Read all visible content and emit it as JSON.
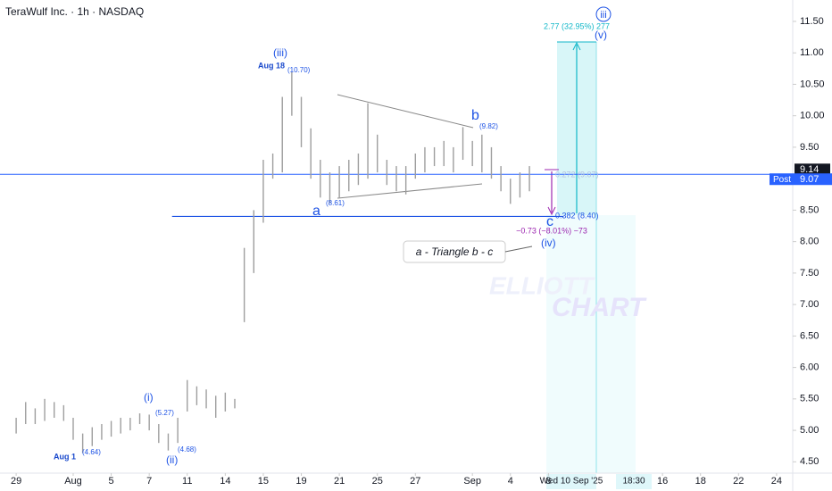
{
  "chart_data": {
    "type": "range-bar",
    "title": "TeraWulf Inc. · 1h · NASDAQ",
    "color": "#9e9e9e",
    "x": [
      0,
      0.5,
      1,
      1.5,
      2,
      2.5,
      3,
      3.5,
      4,
      4.5,
      5,
      5.5,
      6,
      6.5,
      7,
      7.5,
      8,
      8.5,
      9,
      9.5,
      10,
      10.5,
      11,
      11.5,
      12,
      12.5,
      13,
      13.5,
      14,
      14.5,
      15,
      15.5,
      16,
      16.5,
      17,
      17.5,
      18,
      18.5,
      19,
      19.5,
      20,
      20.5,
      21,
      21.5,
      22,
      22.5,
      23,
      23.5,
      24,
      24.5,
      25,
      25.5,
      26,
      26.5,
      27
    ],
    "low": [
      4.95,
      5.1,
      5.1,
      5.15,
      5.2,
      5.15,
      4.85,
      4.64,
      4.75,
      4.85,
      4.9,
      4.95,
      5.0,
      5.1,
      5.0,
      4.8,
      4.68,
      4.8,
      5.3,
      5.4,
      5.35,
      5.2,
      5.3,
      5.35,
      6.72,
      7.5,
      8.3,
      9.0,
      9.1,
      10.0,
      9.5,
      9.0,
      8.7,
      8.61,
      8.7,
      8.8,
      8.9,
      9.0,
      9.1,
      8.9,
      8.8,
      8.75,
      9.0,
      9.1,
      9.2,
      9.2,
      9.1,
      9.3,
      9.2,
      9.1,
      9.0,
      8.8,
      8.6,
      8.7,
      8.8
    ],
    "high": [
      5.2,
      5.45,
      5.35,
      5.5,
      5.45,
      5.4,
      5.2,
      4.95,
      5.05,
      5.1,
      5.15,
      5.2,
      5.2,
      5.27,
      5.25,
      5.1,
      4.95,
      5.2,
      5.8,
      5.7,
      5.65,
      5.55,
      5.6,
      5.5,
      7.9,
      8.5,
      9.3,
      9.4,
      10.3,
      10.7,
      10.3,
      9.8,
      9.3,
      9.1,
      9.2,
      9.3,
      9.4,
      10.2,
      9.7,
      9.3,
      9.2,
      9.2,
      9.4,
      9.5,
      9.5,
      9.6,
      9.5,
      9.82,
      9.6,
      9.7,
      9.5,
      9.2,
      9.0,
      9.1,
      9.2
    ],
    "xlim": [
      -0.85,
      40.85
    ],
    "ylim": [
      4.32,
      11.84
    ],
    "xticks": [
      {
        "value": 0,
        "label": "29"
      },
      {
        "value": 3,
        "label": "Aug"
      },
      {
        "value": 5,
        "label": "5"
      },
      {
        "value": 7,
        "label": "7"
      },
      {
        "value": 9,
        "label": "11"
      },
      {
        "value": 11,
        "label": "14"
      },
      {
        "value": 13,
        "label": "15"
      },
      {
        "value": 15,
        "label": "19"
      },
      {
        "value": 17,
        "label": "21"
      },
      {
        "value": 19,
        "label": "25"
      },
      {
        "value": 21,
        "label": "27"
      },
      {
        "value": 24,
        "label": "Sep"
      },
      {
        "value": 26,
        "label": "4"
      },
      {
        "value": 28,
        "label": "8"
      },
      {
        "value": 34,
        "label": "16"
      },
      {
        "value": 36,
        "label": "18"
      },
      {
        "value": 38,
        "label": "22"
      },
      {
        "value": 40,
        "label": "24"
      }
    ],
    "yticks": [
      {
        "value": 4.5,
        "label": "4.50"
      },
      {
        "value": 5,
        "label": "5.00"
      },
      {
        "value": 5.5,
        "label": "5.50"
      },
      {
        "value": 6,
        "label": "6.00"
      },
      {
        "value": 6.5,
        "label": "6.50"
      },
      {
        "value": 7,
        "label": "7.00"
      },
      {
        "value": 7.5,
        "label": "7.50"
      },
      {
        "value": 8,
        "label": "8.00"
      },
      {
        "value": 8.5,
        "label": "8.50"
      },
      {
        "value": 9,
        "label": "9.00"
      },
      {
        "value": 9.5,
        "label": "9.50"
      },
      {
        "value": 10,
        "label": "10.00"
      },
      {
        "value": 10.5,
        "label": "10.50"
      },
      {
        "value": 11,
        "label": "11.00"
      },
      {
        "value": 11.5,
        "label": "11.50"
      }
    ],
    "last_price": 9.14,
    "post_label": "Post",
    "post_price": 9.07,
    "fib_level": 8.4,
    "crosshair_date": "Wed 10 Sep '25",
    "crosshair_time": "18:30",
    "annotations": {
      "wave_iii": "(iii)",
      "aug18": "Aug 18",
      "high_1070": "(10.70)",
      "wave_b": "b",
      "b_price": "(9.82)",
      "wave_a": "a",
      "a_price": "(8.61)",
      "wave_c": "c",
      "wave_iv": "(iv)",
      "wave_i": "(i)",
      "i_price": "(5.27)",
      "wave_ii": "(ii)",
      "ii_price": "(4.68)",
      "aug1": "Aug 1",
      "low_464": "(4.64)",
      "wave_v": "(v)",
      "circle_iii": "iii",
      "target": "2.77 (32.95%) 277",
      "measure": "−0.73 (−8.01%) −73",
      "fib_382": "0.382 (8.40)",
      "fib_272": "0.272 (9.07)",
      "note": "a - Triangle b - c",
      "watermark1": "ELLIOTT",
      "watermark2": "CHART"
    }
  }
}
